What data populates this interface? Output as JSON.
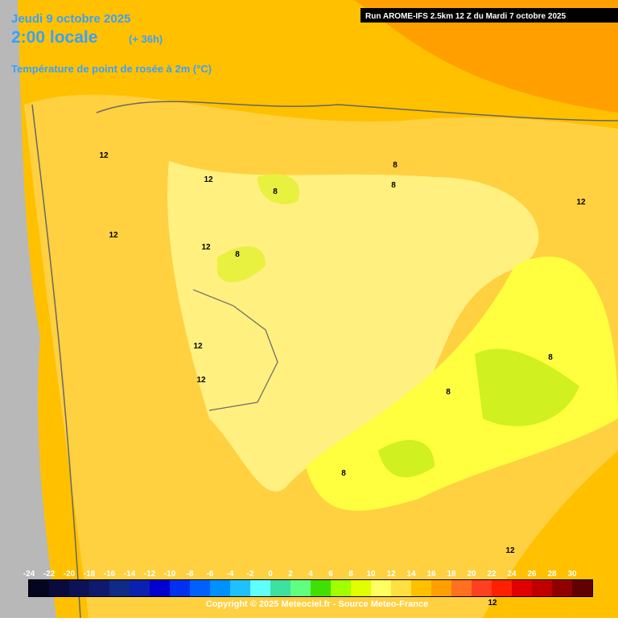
{
  "header": {
    "date": "Jeudi 9 octobre 2025",
    "time": "2:00 locale",
    "lead": "(+ 36h)",
    "title": "Température de point de rosée à 2m (°C)",
    "run": "Run AROME-IFS 2.5km 12 Z du Mardi 7 octobre 2025"
  },
  "contour_labels": [
    12,
    12,
    12,
    12,
    12,
    12,
    12,
    12,
    12,
    8,
    8,
    8,
    8,
    8,
    8,
    8
  ],
  "legend": {
    "labels": [
      -24,
      -22,
      -20,
      -18,
      -16,
      -14,
      -12,
      -10,
      -8,
      -6,
      -4,
      -2,
      0,
      2,
      4,
      6,
      8,
      10,
      12,
      14,
      16,
      18,
      20,
      22,
      24,
      26,
      28,
      30
    ],
    "colors": [
      "#050520",
      "#0a0a3c",
      "#0d1255",
      "#0f1a6e",
      "#102a88",
      "#0a20b0",
      "#0000d0",
      "#0030f0",
      "#0060ff",
      "#0090ff",
      "#20c0ff",
      "#60ffff",
      "#40e0a0",
      "#60ff80",
      "#40e000",
      "#a0ff00",
      "#e0ff00",
      "#ffff60",
      "#ffe040",
      "#ffc000",
      "#ffa000",
      "#ff7020",
      "#ff4020",
      "#ff2000",
      "#e00000",
      "#c00000",
      "#900000",
      "#600000"
    ]
  },
  "footer": {
    "copyright": "Copyright © 2025 Meteociel.fr - Source Meteo-France"
  }
}
